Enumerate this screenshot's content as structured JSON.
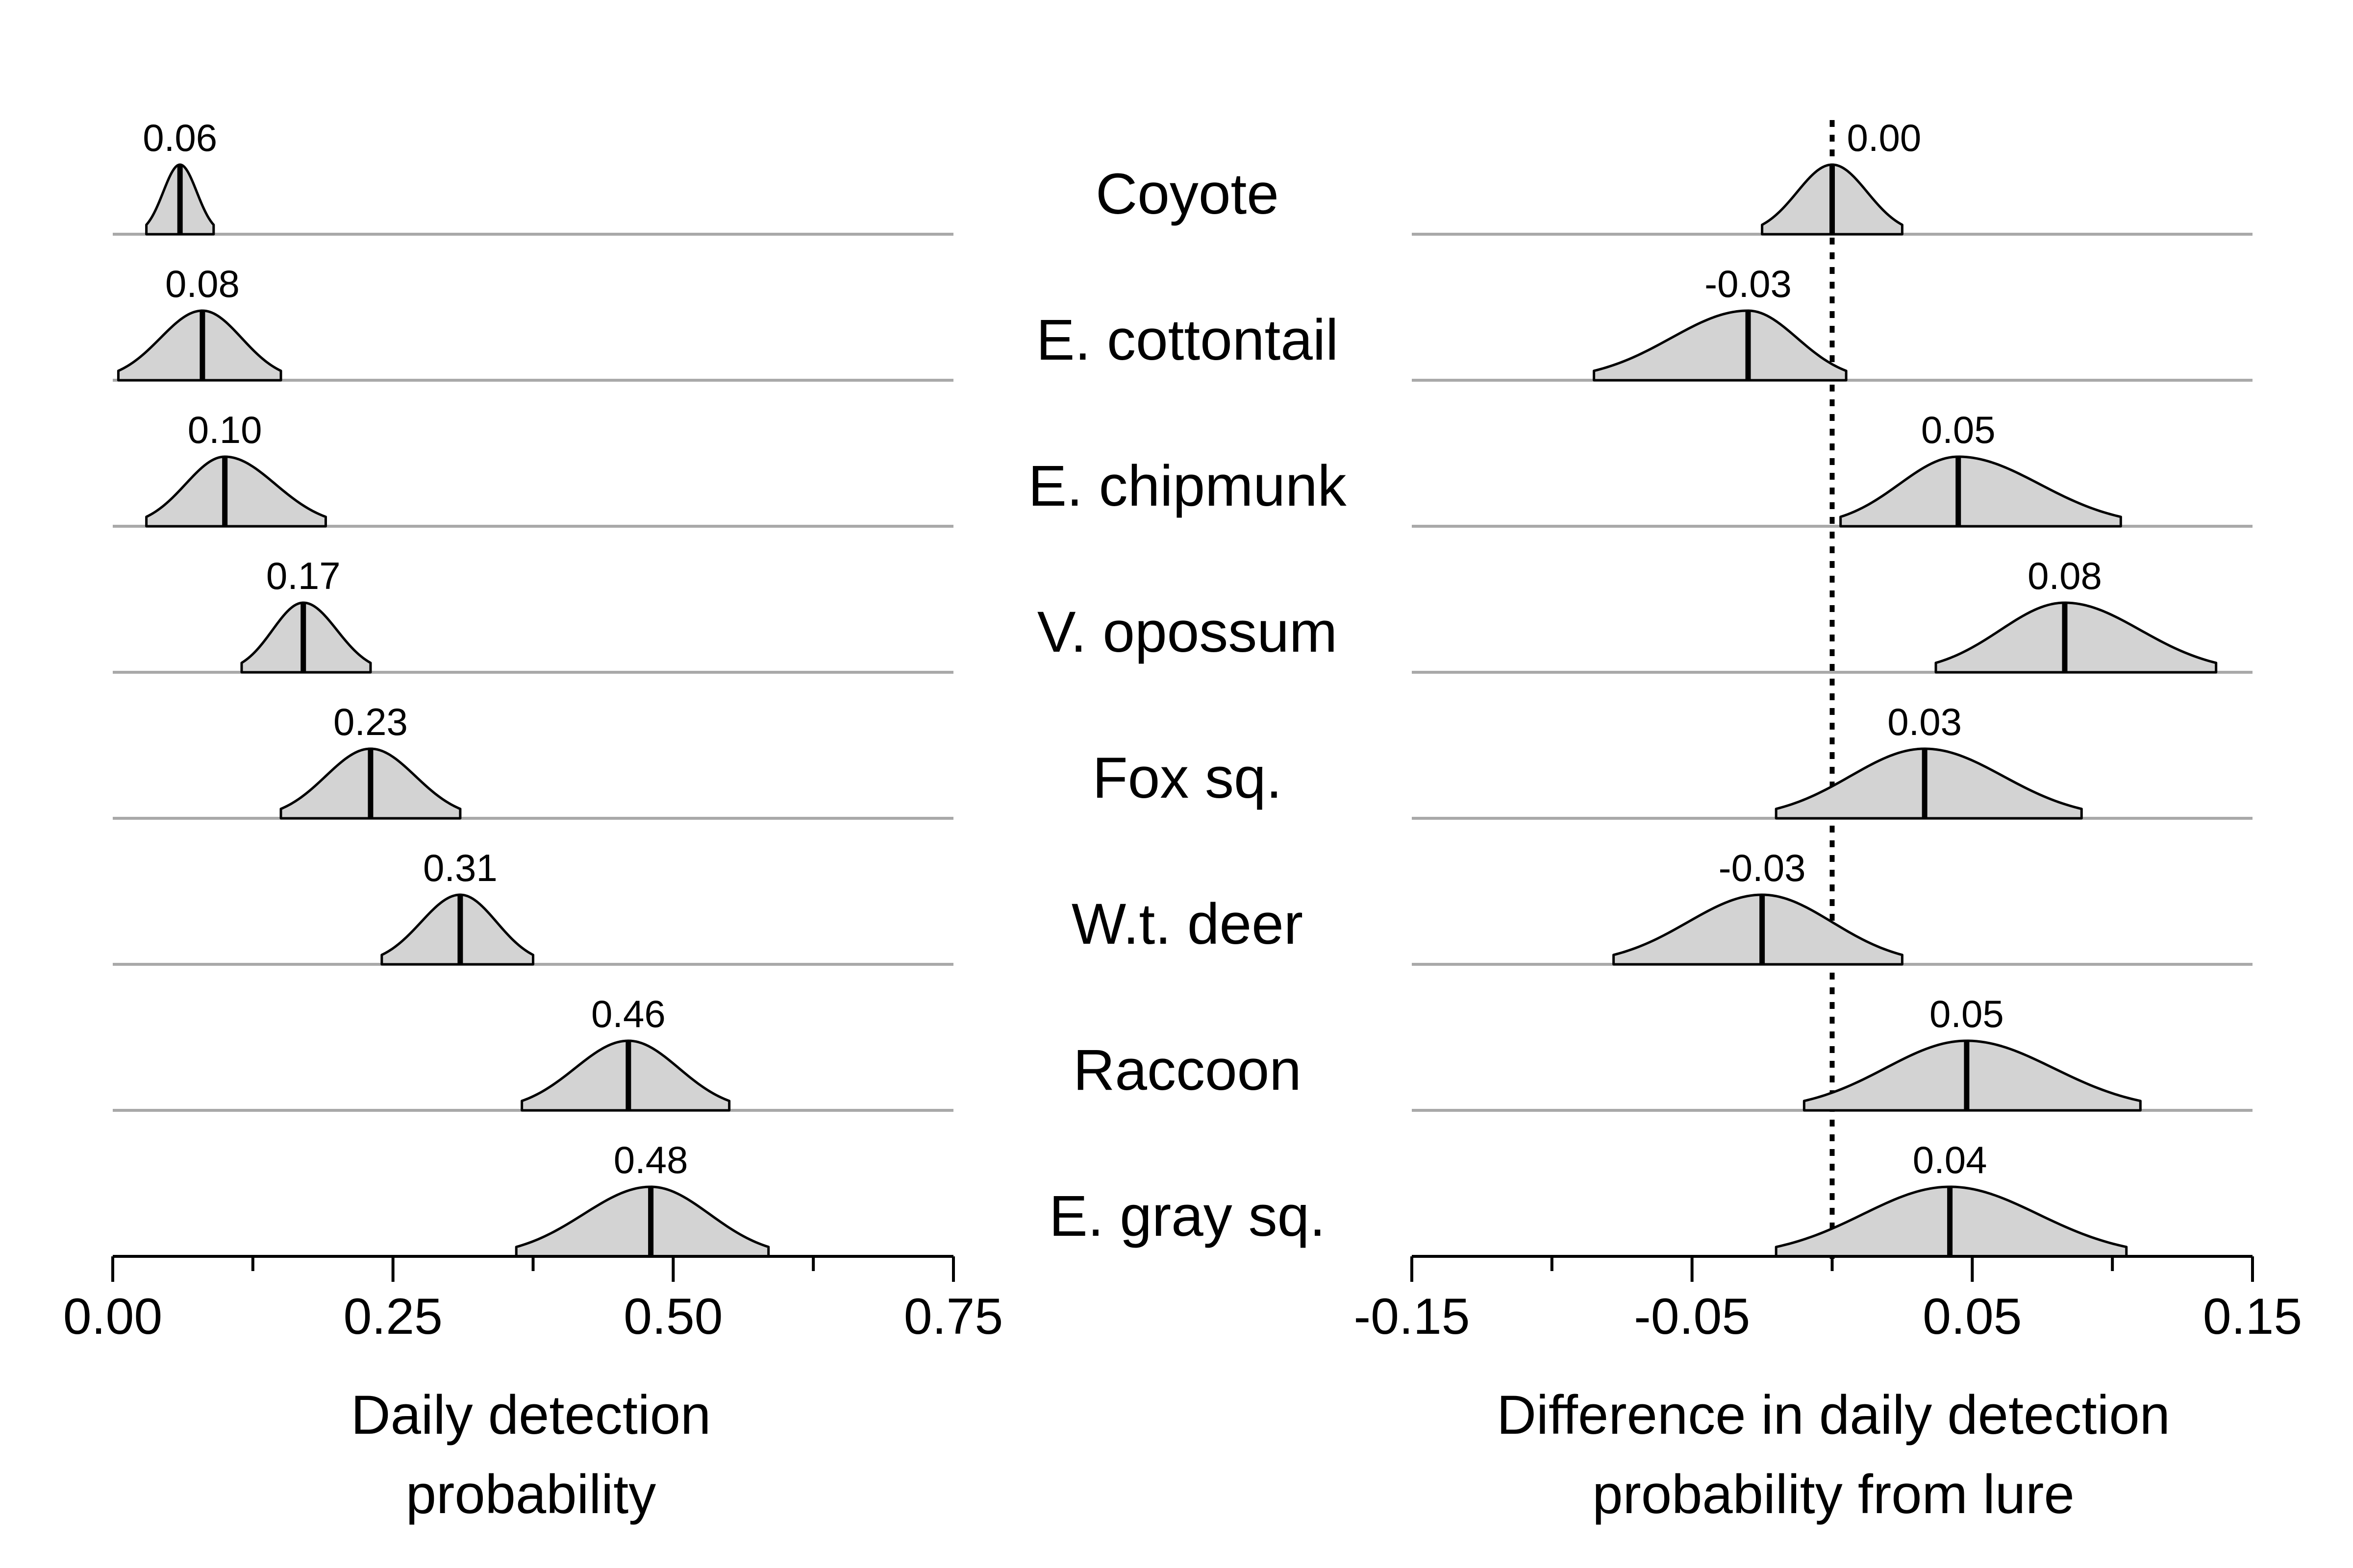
{
  "species": [
    "Coyote",
    "E. cottontail",
    "E. chipmunk",
    "V. opossum",
    "Fox sq.",
    "W.t. deer",
    "Raccoon",
    "E. gray sq."
  ],
  "colors": {
    "fill": "#d3d3d3",
    "outline": "#000000",
    "baseline": "#a9a9a9",
    "axis": "#000000"
  },
  "chart_data": [
    {
      "type": "ridgeline-density",
      "xlabel": "Daily detection probability",
      "xlim": [
        0,
        0.75
      ],
      "ticks": [
        0,
        0.25,
        0.5,
        0.75
      ],
      "tick_labels": [
        "0.00",
        "0.25",
        "0.50",
        "0.75"
      ],
      "series": [
        {
          "species": "Coyote",
          "median": 0.06,
          "lower": 0.03,
          "upper": 0.09,
          "label": "0.06"
        },
        {
          "species": "E. cottontail",
          "median": 0.08,
          "lower": 0.005,
          "upper": 0.15,
          "label": "0.08"
        },
        {
          "species": "E. chipmunk",
          "median": 0.1,
          "lower": 0.03,
          "upper": 0.19,
          "label": "0.10"
        },
        {
          "species": "V. opossum",
          "median": 0.17,
          "lower": 0.115,
          "upper": 0.23,
          "label": "0.17"
        },
        {
          "species": "Fox sq.",
          "median": 0.23,
          "lower": 0.15,
          "upper": 0.31,
          "label": "0.23"
        },
        {
          "species": "W.t. deer",
          "median": 0.31,
          "lower": 0.24,
          "upper": 0.375,
          "label": "0.31"
        },
        {
          "species": "Raccoon",
          "median": 0.46,
          "lower": 0.365,
          "upper": 0.55,
          "label": "0.46"
        },
        {
          "species": "E. gray sq.",
          "median": 0.48,
          "lower": 0.36,
          "upper": 0.585,
          "label": "0.48"
        }
      ]
    },
    {
      "type": "ridgeline-density",
      "xlabel": "Difference in daily detection probability from lure",
      "xlim": [
        -0.15,
        0.15
      ],
      "ticks": [
        -0.15,
        -0.05,
        0.05,
        0.15
      ],
      "tick_labels": [
        "-0.15",
        "-0.05",
        "0.05",
        "0.15"
      ],
      "reference_line": 0,
      "series": [
        {
          "species": "Coyote",
          "median": 0.0,
          "lower": -0.025,
          "upper": 0.025,
          "label": "0.00"
        },
        {
          "species": "E. cottontail",
          "median": -0.03,
          "lower": -0.085,
          "upper": 0.005,
          "label": "-0.03"
        },
        {
          "species": "E. chipmunk",
          "median": 0.045,
          "lower": 0.003,
          "upper": 0.103,
          "label": "0.05"
        },
        {
          "species": "V. opossum",
          "median": 0.083,
          "lower": 0.037,
          "upper": 0.137,
          "label": "0.08"
        },
        {
          "species": "Fox sq.",
          "median": 0.033,
          "lower": -0.02,
          "upper": 0.089,
          "label": "0.03"
        },
        {
          "species": "W.t. deer",
          "median": -0.025,
          "lower": -0.078,
          "upper": 0.025,
          "label": "-0.03"
        },
        {
          "species": "Raccoon",
          "median": 0.048,
          "lower": -0.01,
          "upper": 0.11,
          "label": "0.05"
        },
        {
          "species": "E. gray sq.",
          "median": 0.042,
          "lower": -0.02,
          "upper": 0.105,
          "label": "0.04"
        }
      ]
    }
  ]
}
